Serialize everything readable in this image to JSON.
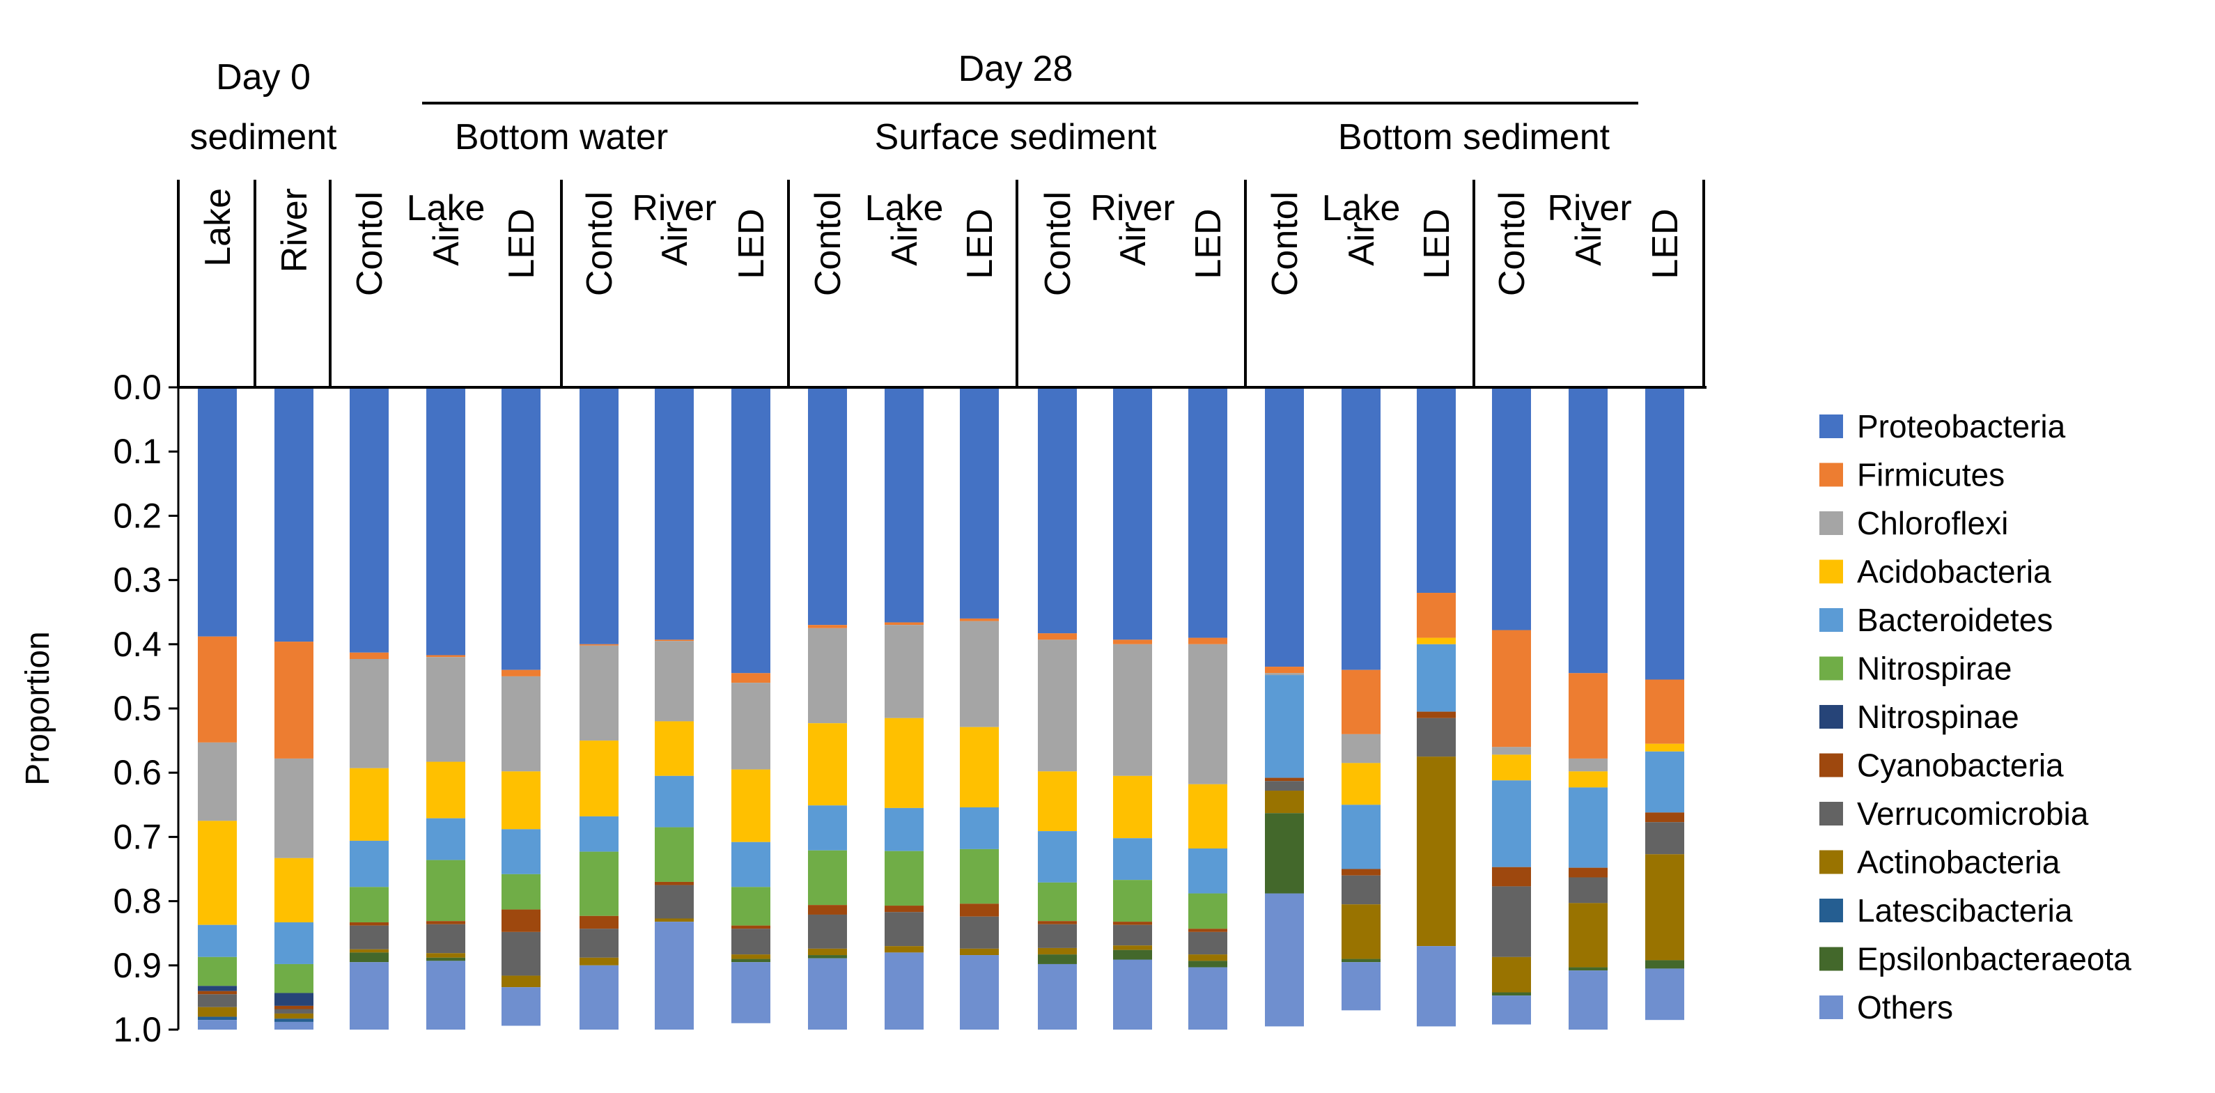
{
  "chart_data": {
    "type": "bar",
    "stacked": true,
    "y_axis_label": "Proportion",
    "ylim": [
      0.0,
      1.0
    ],
    "y_ticks": [
      "0.0",
      "0.1",
      "0.2",
      "0.3",
      "0.4",
      "0.5",
      "0.6",
      "0.7",
      "0.8",
      "0.9",
      "1.0"
    ],
    "y_inverted": true,
    "legend_position": "right",
    "header": {
      "day0_label": "Day 0 sediment",
      "day28_label": "Day 28",
      "groups": [
        {
          "label": "Bottom water",
          "sub_groups": [
            "Lake",
            "River"
          ]
        },
        {
          "label": "Surface sediment",
          "sub_groups": [
            "Lake",
            "River"
          ]
        },
        {
          "label": "Bottom sediment",
          "sub_groups": [
            "Lake",
            "River"
          ]
        }
      ],
      "day0_columns": [
        "Lake",
        "River"
      ],
      "treatments": [
        "Contol",
        "Air",
        "LED"
      ]
    },
    "categories": [
      "Day 0 Lake",
      "Day 0 River",
      "BW Lake Contol",
      "BW Lake Air",
      "BW Lake LED",
      "BW River Contol",
      "BW River Air",
      "BW River LED",
      "SS Lake Contol",
      "SS Lake Air",
      "SS Lake LED",
      "SS River Contol",
      "SS River Air",
      "SS River LED",
      "BS Lake Contol",
      "BS Lake Air",
      "BS Lake LED",
      "BS River Contol",
      "BS River Air",
      "BS River LED"
    ],
    "series": [
      {
        "name": "Proteobacteria",
        "color": "#4472c4",
        "values": [
          0.388,
          0.396,
          0.413,
          0.417,
          0.44,
          0.4,
          0.393,
          0.445,
          0.37,
          0.366,
          0.36,
          0.383,
          0.393,
          0.39,
          0.435,
          0.44,
          0.32,
          0.378,
          0.445,
          0.455
        ]
      },
      {
        "name": "Firmicutes",
        "color": "#ed7d31",
        "values": [
          0.165,
          0.182,
          0.01,
          0.003,
          0.01,
          0.002,
          0.002,
          0.015,
          0.005,
          0.004,
          0.004,
          0.01,
          0.007,
          0.01,
          0.01,
          0.1,
          0.07,
          0.182,
          0.133,
          0.1
        ]
      },
      {
        "name": "Chloroflexi",
        "color": "#a5a5a5",
        "values": [
          0.122,
          0.155,
          0.17,
          0.163,
          0.148,
          0.148,
          0.125,
          0.135,
          0.148,
          0.145,
          0.165,
          0.205,
          0.205,
          0.218,
          0.003,
          0.045,
          0.0,
          0.012,
          0.02,
          0.0
        ]
      },
      {
        "name": "Acidobacteria",
        "color": "#ffc000",
        "values": [
          0.162,
          0.1,
          0.113,
          0.088,
          0.09,
          0.118,
          0.085,
          0.113,
          0.128,
          0.14,
          0.125,
          0.093,
          0.097,
          0.1,
          0.0,
          0.065,
          0.01,
          0.04,
          0.025,
          0.012
        ]
      },
      {
        "name": "Bacteroidetes",
        "color": "#5b9bd5",
        "values": [
          0.05,
          0.065,
          0.072,
          0.065,
          0.07,
          0.055,
          0.08,
          0.07,
          0.07,
          0.067,
          0.065,
          0.08,
          0.065,
          0.07,
          0.16,
          0.1,
          0.105,
          0.135,
          0.125,
          0.095
        ]
      },
      {
        "name": "Nitrospirae",
        "color": "#70ad47",
        "values": [
          0.045,
          0.045,
          0.055,
          0.095,
          0.055,
          0.1,
          0.085,
          0.06,
          0.085,
          0.085,
          0.085,
          0.06,
          0.065,
          0.055,
          0.0,
          0.0,
          0.0,
          0.0,
          0.0,
          0.0
        ]
      },
      {
        "name": "Nitrospinae",
        "color": "#264478",
        "values": [
          0.008,
          0.02,
          0.0,
          0.0,
          0.0,
          0.0,
          0.0,
          0.0,
          0.0,
          0.0,
          0.0,
          0.0,
          0.0,
          0.0,
          0.0,
          0.0,
          0.0,
          0.0,
          0.0,
          0.0
        ]
      },
      {
        "name": "Cyanobacteria",
        "color": "#9e480e",
        "values": [
          0.005,
          0.005,
          0.005,
          0.005,
          0.035,
          0.02,
          0.005,
          0.005,
          0.015,
          0.01,
          0.02,
          0.005,
          0.005,
          0.005,
          0.005,
          0.01,
          0.01,
          0.03,
          0.015,
          0.015
        ]
      },
      {
        "name": "Verrucomicrobia",
        "color": "#636363",
        "values": [
          0.02,
          0.007,
          0.037,
          0.045,
          0.068,
          0.045,
          0.052,
          0.04,
          0.053,
          0.053,
          0.05,
          0.037,
          0.032,
          0.035,
          0.015,
          0.045,
          0.06,
          0.11,
          0.04,
          0.05
        ]
      },
      {
        "name": "Actinobacteria",
        "color": "#997300",
        "values": [
          0.015,
          0.008,
          0.005,
          0.007,
          0.018,
          0.012,
          0.005,
          0.007,
          0.01,
          0.01,
          0.01,
          0.01,
          0.007,
          0.01,
          0.035,
          0.085,
          0.295,
          0.055,
          0.1,
          0.165
        ]
      },
      {
        "name": "Latescibacteria",
        "color": "#255e91",
        "values": [
          0.005,
          0.005,
          0.0,
          0.0,
          0.0,
          0.0,
          0.0,
          0.0,
          0.0,
          0.0,
          0.0,
          0.0,
          0.0,
          0.0,
          0.0,
          0.0,
          0.0,
          0.0,
          0.0,
          0.0
        ]
      },
      {
        "name": "Epsilonbacteraeota",
        "color": "#43682b",
        "values": [
          0.0,
          0.0,
          0.015,
          0.005,
          0.0,
          0.0,
          0.0,
          0.005,
          0.005,
          0.0,
          0.0,
          0.015,
          0.015,
          0.01,
          0.125,
          0.005,
          0.0,
          0.005,
          0.005,
          0.013
        ]
      },
      {
        "name": "Others",
        "color": "#6f8fcf",
        "values": [
          0.015,
          0.012,
          0.105,
          0.11,
          0.06,
          0.1,
          0.168,
          0.095,
          0.111,
          0.12,
          0.116,
          0.102,
          0.109,
          0.107,
          0.207,
          0.075,
          0.125,
          0.045,
          0.092,
          0.08
        ]
      }
    ]
  }
}
